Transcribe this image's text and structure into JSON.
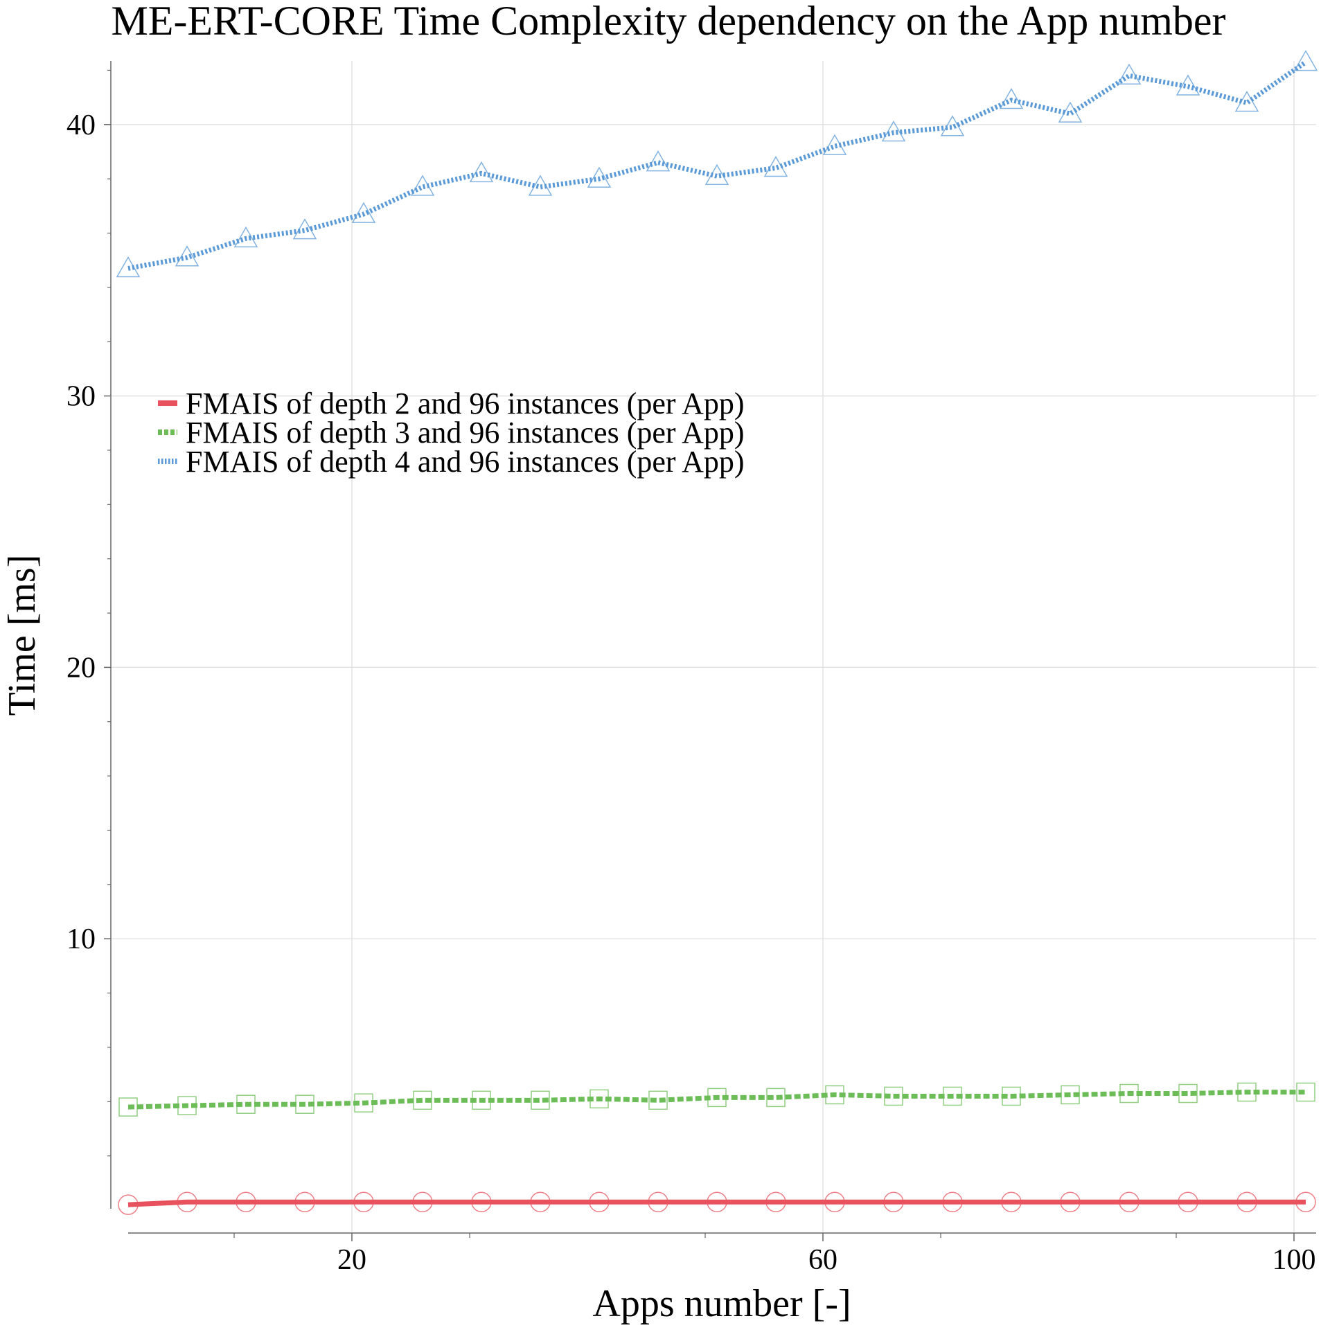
{
  "chart_data": {
    "type": "line",
    "title": "ME-ERT-CORE Time Complexity dependency on the App number",
    "xlabel": "Apps number [-]",
    "ylabel": "Time [ms]",
    "xlim": [
      1,
      101
    ],
    "ylim": [
      0,
      42.4
    ],
    "xticks": [
      "20",
      "60",
      "100"
    ],
    "yticks": [
      "10",
      "20",
      "30",
      "40"
    ],
    "xtick_values": [
      20,
      60,
      100
    ],
    "ytick_values": [
      10,
      20,
      30,
      40
    ],
    "grid": true,
    "legend_position": "upper-left",
    "x": [
      1,
      6,
      11,
      16,
      21,
      26,
      31,
      36,
      41,
      46,
      51,
      56,
      61,
      66,
      71,
      76,
      81,
      86,
      91,
      96,
      101
    ],
    "series": [
      {
        "name": "FMAIS of depth 2 and 96 instances (per App)",
        "color": "#e8525e",
        "line_style": "solid",
        "marker": "circle",
        "values": [
          0.2,
          0.3,
          0.3,
          0.3,
          0.3,
          0.3,
          0.3,
          0.3,
          0.3,
          0.3,
          0.3,
          0.3,
          0.3,
          0.3,
          0.3,
          0.3,
          0.3,
          0.3,
          0.3,
          0.3,
          0.3
        ]
      },
      {
        "name": "FMAIS of depth 3 and 96 instances (per App)",
        "color": "#6cbd58",
        "line_style": "dashed",
        "marker": "square",
        "values": [
          3.8,
          3.85,
          3.9,
          3.9,
          3.95,
          4.05,
          4.05,
          4.05,
          4.1,
          4.05,
          4.15,
          4.15,
          4.25,
          4.2,
          4.2,
          4.2,
          4.25,
          4.3,
          4.3,
          4.35,
          4.35
        ]
      },
      {
        "name": "FMAIS of depth 4 and 96 instances (per App)",
        "color": "#5a9ad6",
        "line_style": "dotted",
        "marker": "triangle",
        "values": [
          34.7,
          35.1,
          35.8,
          36.1,
          36.7,
          37.7,
          38.2,
          37.7,
          38.0,
          38.6,
          38.1,
          38.4,
          39.2,
          39.7,
          39.9,
          40.9,
          40.4,
          41.8,
          41.4,
          40.8,
          42.3
        ]
      }
    ]
  }
}
